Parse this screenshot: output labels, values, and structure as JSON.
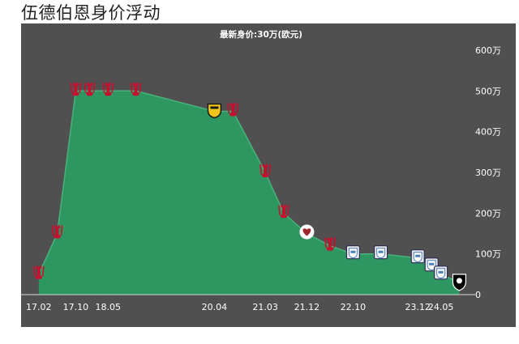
{
  "page": {
    "title": "伍德伯恩身价浮动"
  },
  "chart_data": {
    "type": "area",
    "title": "最新身价:30万(欧元)",
    "xlabel": "",
    "ylabel": "",
    "x_ticks": [
      "17.02",
      "17.10",
      "18.05",
      "20.04",
      "21.03",
      "21.12",
      "22.10",
      "23.12",
      "24.05"
    ],
    "y_ticks": [
      "0",
      "100万",
      "200万",
      "300万",
      "400万",
      "500万",
      "600万"
    ],
    "ylim": [
      0,
      600
    ],
    "y_unit": "万",
    "grid": false,
    "legend": "none",
    "series": [
      {
        "values": [
          {
            "x": "17.02",
            "y": 50,
            "club": "liverpool"
          },
          {
            "x": "17.06",
            "y": 150,
            "club": "liverpool"
          },
          {
            "x": "17.10",
            "y": 500,
            "club": "liverpool"
          },
          {
            "x": "18.01",
            "y": 500,
            "club": "liverpool"
          },
          {
            "x": "18.05",
            "y": 500,
            "club": "liverpool"
          },
          {
            "x": "18.11",
            "y": 500,
            "club": "liverpool"
          },
          {
            "x": "20.04",
            "y": 450,
            "club": "oxford-united"
          },
          {
            "x": "20.08",
            "y": 450,
            "club": "liverpool"
          },
          {
            "x": "21.03",
            "y": 300,
            "club": "liverpool"
          },
          {
            "x": "21.07",
            "y": 200,
            "club": "liverpool"
          },
          {
            "x": "21.12",
            "y": 150,
            "club": "hearts"
          },
          {
            "x": "22.05",
            "y": 120,
            "club": "liverpool"
          },
          {
            "x": "22.10",
            "y": 100,
            "club": "preston"
          },
          {
            "x": "23.04",
            "y": 100,
            "club": "preston"
          },
          {
            "x": "23.12",
            "y": 90,
            "club": "preston"
          },
          {
            "x": "24.03",
            "y": 70,
            "club": "preston"
          },
          {
            "x": "24.05",
            "y": 50,
            "club": "preston"
          },
          {
            "x": "24.09",
            "y": 30,
            "club": "salford-city"
          }
        ]
      }
    ]
  },
  "colors": {
    "panel_background": "#505050",
    "area_fill": "#2e9660",
    "area_line": "#49b27a",
    "axis_text": "#ffffff",
    "liverpool_crest": "#c8102e",
    "oxford_crest": "#f0c419",
    "hearts_crest": "#a0282d",
    "preston_crest": "#ffffff",
    "salford_crest": "#000000"
  }
}
